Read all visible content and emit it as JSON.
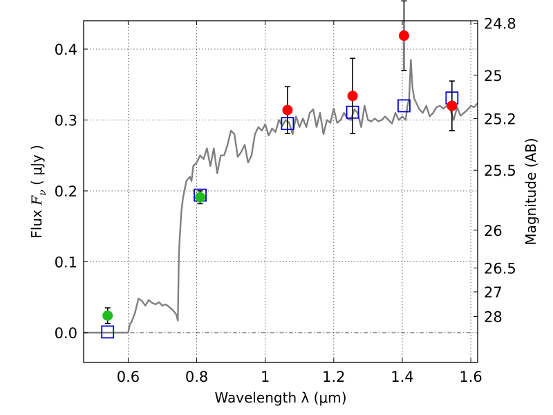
{
  "chart_data": {
    "type": "scatter",
    "title": "",
    "xlabel": "Wavelength  λ (μm)",
    "ylabel": "Flux  F_ν  ( μJy )",
    "ylabel_parts": {
      "prefix": "Flux ",
      "symbol": "F",
      "subscript": "ν",
      "suffix": "  ( μJy )"
    },
    "y2label": "Magnitude (AB)",
    "xlim": [
      0.47,
      1.62
    ],
    "ylim": [
      -0.042,
      0.44
    ],
    "grid": true,
    "x_ticks": [
      0.6,
      0.8,
      1.0,
      1.2,
      1.4,
      1.6
    ],
    "x_tick_labels": [
      "0.6",
      "0.8",
      "1",
      "1.2",
      "1.4",
      "1.6"
    ],
    "y_ticks": [
      0.0,
      0.1,
      0.2,
      0.3,
      0.4
    ],
    "y_tick_labels": [
      "0.0",
      "0.1",
      "0.2",
      "0.3",
      "0.4"
    ],
    "mag_ticks": [
      24.8,
      25,
      25.2,
      25.5,
      26,
      26.5,
      27,
      28
    ],
    "mag_tick_labels": [
      "24.8",
      "25",
      "25.2",
      "25.5",
      "26",
      "26.5",
      "27",
      "28"
    ],
    "colors": {
      "sed": "#808080",
      "observed": "#ff0000",
      "observed_optical": "#22bb22",
      "model_box": "#0000cc",
      "errorbar": "#000000",
      "grid": "#333333",
      "zero_line": "#333333"
    },
    "series": [
      {
        "name": "sed_template",
        "kind": "line",
        "x": [
          0.47,
          0.6,
          0.605,
          0.61,
          0.62,
          0.63,
          0.64,
          0.65,
          0.66,
          0.67,
          0.68,
          0.69,
          0.7,
          0.71,
          0.72,
          0.73,
          0.74,
          0.745,
          0.748,
          0.75,
          0.755,
          0.76,
          0.77,
          0.78,
          0.785,
          0.79,
          0.8,
          0.81,
          0.82,
          0.83,
          0.84,
          0.85,
          0.86,
          0.87,
          0.88,
          0.89,
          0.9,
          0.91,
          0.92,
          0.93,
          0.94,
          0.95,
          0.96,
          0.97,
          0.98,
          0.99,
          1.0,
          1.01,
          1.02,
          1.03,
          1.04,
          1.05,
          1.06,
          1.07,
          1.08,
          1.09,
          1.1,
          1.11,
          1.12,
          1.13,
          1.14,
          1.15,
          1.16,
          1.17,
          1.18,
          1.19,
          1.2,
          1.21,
          1.22,
          1.23,
          1.24,
          1.25,
          1.26,
          1.27,
          1.28,
          1.29,
          1.3,
          1.31,
          1.32,
          1.33,
          1.34,
          1.35,
          1.36,
          1.37,
          1.38,
          1.39,
          1.4,
          1.41,
          1.415,
          1.42,
          1.425,
          1.43,
          1.435,
          1.44,
          1.45,
          1.46,
          1.47,
          1.48,
          1.49,
          1.5,
          1.51,
          1.52,
          1.53,
          1.54,
          1.55,
          1.56,
          1.57,
          1.58,
          1.59,
          1.6,
          1.61,
          1.62
        ],
        "y": [
          0.0,
          0.0,
          0.012,
          0.015,
          0.028,
          0.048,
          0.045,
          0.038,
          0.046,
          0.042,
          0.04,
          0.043,
          0.038,
          0.04,
          0.036,
          0.032,
          0.026,
          0.017,
          0.11,
          0.13,
          0.17,
          0.19,
          0.214,
          0.22,
          0.214,
          0.235,
          0.24,
          0.25,
          0.245,
          0.26,
          0.235,
          0.26,
          0.225,
          0.25,
          0.25,
          0.265,
          0.285,
          0.28,
          0.248,
          0.255,
          0.265,
          0.24,
          0.25,
          0.28,
          0.29,
          0.285,
          0.294,
          0.278,
          0.288,
          0.283,
          0.3,
          0.292,
          0.3,
          0.296,
          0.28,
          0.305,
          0.29,
          0.302,
          0.29,
          0.31,
          0.315,
          0.29,
          0.31,
          0.28,
          0.3,
          0.296,
          0.316,
          0.296,
          0.3,
          0.31,
          0.302,
          0.3,
          0.315,
          0.31,
          0.29,
          0.32,
          0.3,
          0.298,
          0.302,
          0.298,
          0.3,
          0.305,
          0.3,
          0.295,
          0.31,
          0.3,
          0.305,
          0.3,
          0.32,
          0.33,
          0.385,
          0.345,
          0.33,
          0.325,
          0.315,
          0.31,
          0.32,
          0.305,
          0.31,
          0.318,
          0.32,
          0.316,
          0.32,
          0.315,
          0.3,
          0.318,
          0.306,
          0.31,
          0.314,
          0.32,
          0.318,
          0.324
        ]
      },
      {
        "name": "observed_flux",
        "kind": "points",
        "points": [
          {
            "x": 0.54,
            "y": 0.024,
            "err": 0.011,
            "color": "#22bb22"
          },
          {
            "x": 0.81,
            "y": 0.191,
            "err": 0.009,
            "color": "#22bb22"
          },
          {
            "x": 1.065,
            "y": 0.314,
            "err": 0.033,
            "color": "#ff0000"
          },
          {
            "x": 1.255,
            "y": 0.334,
            "err": 0.053,
            "color": "#ff0000"
          },
          {
            "x": 1.405,
            "y": 0.419,
            "err": 0.049,
            "color": "#ff0000"
          },
          {
            "x": 1.545,
            "y": 0.32,
            "err": 0.035,
            "color": "#ff0000"
          }
        ]
      },
      {
        "name": "model_band_flux",
        "kind": "squares",
        "points": [
          {
            "x": 0.54,
            "y": 0.001
          },
          {
            "x": 0.81,
            "y": 0.194
          },
          {
            "x": 1.065,
            "y": 0.295
          },
          {
            "x": 1.255,
            "y": 0.311
          },
          {
            "x": 1.405,
            "y": 0.32
          },
          {
            "x": 1.545,
            "y": 0.331
          }
        ]
      }
    ]
  }
}
